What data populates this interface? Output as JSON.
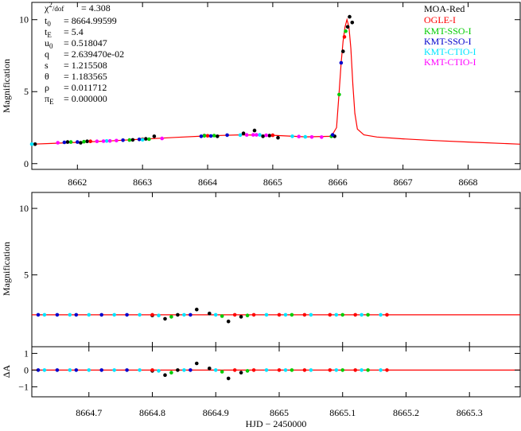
{
  "colors": {
    "model": "#ff0000",
    "MOA-Red": "#000000",
    "OGLE-I": "#ff0000",
    "KMT-SSO-I": "#00cc00",
    "KMT-SSO-I-2": "#0000cc",
    "KMT-CTIO-I": "#00e5ff",
    "KMT-CTIO-I-2": "#ff00ff"
  },
  "chart_data": [
    {
      "type": "line",
      "panel": "top",
      "ylabel": "Magnification",
      "xlim": [
        8661.3,
        8668.8
      ],
      "ylim": [
        -0.4,
        11.2
      ],
      "xticks": [
        8662,
        8663,
        8664,
        8665,
        8666,
        8667,
        8668
      ],
      "xticklabels": [
        "8662",
        "8663",
        "8664",
        "8665",
        "8666",
        "8667",
        "8668"
      ],
      "yticks": [
        0,
        5,
        10
      ],
      "yticklabels": [
        "0",
        "5",
        "10"
      ],
      "params": [
        {
          "name": "χ²/dof",
          "value": "= 4.308"
        },
        {
          "name": "t0",
          "value": "= 8664.99599"
        },
        {
          "name": "tE",
          "value": "= 5.4"
        },
        {
          "name": "u0",
          "value": "= 0.518047"
        },
        {
          "name": "q",
          "value": "= 2.639470e-02"
        },
        {
          "name": "s",
          "value": "= 1.215508"
        },
        {
          "name": "θ",
          "value": "= 1.183565"
        },
        {
          "name": "ρ",
          "value": "= 0.011712"
        },
        {
          "name": "πE",
          "value": "= 0.000000"
        }
      ],
      "legend_position": "top-right",
      "legend": [
        "MOA-Red",
        "OGLE-I",
        "KMT-SSO-I",
        "KMT-SSO-I",
        "KMT-CTIO-I",
        "KMT-CTIO-I"
      ],
      "model": {
        "x": [
          8661.3,
          8661.6,
          8662.0,
          8662.5,
          8663.0,
          8663.5,
          8664.0,
          8664.5,
          8665.0,
          8665.5,
          8665.9,
          8665.98,
          8666.02,
          8666.05,
          8666.08,
          8666.11,
          8666.14,
          8666.17,
          8666.2,
          8666.23,
          8666.26,
          8666.3,
          8666.4,
          8666.6,
          8667.0,
          8667.5,
          8668.0,
          8668.8
        ],
        "y": [
          1.35,
          1.4,
          1.48,
          1.58,
          1.7,
          1.82,
          1.93,
          2.0,
          1.97,
          1.86,
          1.9,
          2.5,
          5.0,
          7.0,
          8.5,
          9.5,
          10.0,
          9.5,
          8.0,
          5.5,
          3.5,
          2.4,
          2.0,
          1.85,
          1.72,
          1.6,
          1.5,
          1.35
        ]
      },
      "series": [
        {
          "name": "MOA-Red",
          "x": [
            8661.35,
            8661.85,
            8662.05,
            8662.15,
            8662.85,
            8663.05,
            8663.18,
            8663.95,
            8664.15,
            8664.55,
            8664.72,
            8664.85,
            8664.95,
            8665.08,
            8665.95,
            8666.08,
            8666.15,
            8666.18,
            8666.22
          ],
          "y": [
            1.35,
            1.5,
            1.45,
            1.55,
            1.65,
            1.72,
            1.9,
            1.95,
            1.9,
            2.1,
            2.3,
            1.9,
            1.95,
            1.8,
            1.9,
            7.8,
            9.5,
            10.2,
            9.8
          ]
        },
        {
          "name": "OGLE-I",
          "x": [
            8662.2,
            8663.0,
            8664.0,
            8665.0,
            8666.1
          ],
          "y": [
            1.55,
            1.7,
            1.93,
            1.97,
            8.8
          ]
        },
        {
          "name": "KMT-SSO-I",
          "x": [
            8661.9,
            8662.1,
            8662.8,
            8663.1,
            8663.95,
            8664.1,
            8665.9,
            8666.02,
            8666.12
          ],
          "y": [
            1.5,
            1.52,
            1.64,
            1.7,
            1.93,
            1.95,
            1.9,
            4.8,
            9.2
          ]
        },
        {
          "name": "KMT-SSO-I",
          "x": [
            8661.8,
            8662.0,
            8662.7,
            8662.95,
            8663.9,
            8664.05,
            8664.3,
            8665.92,
            8666.05
          ],
          "y": [
            1.48,
            1.5,
            1.63,
            1.68,
            1.9,
            1.92,
            1.98,
            2.0,
            7.0
          ]
        },
        {
          "name": "KMT-CTIO-I",
          "x": [
            8661.3,
            8662.45,
            8663.0,
            8664.5,
            8664.8,
            8665.3,
            8665.5
          ],
          "y": [
            1.35,
            1.57,
            1.66,
            1.98,
            2.0,
            1.9,
            1.86
          ]
        },
        {
          "name": "KMT-CTIO-I",
          "x": [
            8661.7,
            8662.3,
            8662.4,
            8662.5,
            8662.6,
            8663.3,
            8664.6,
            8664.7,
            8664.75,
            8664.9,
            8665.4,
            8665.6,
            8665.75
          ],
          "y": [
            1.45,
            1.55,
            1.56,
            1.58,
            1.6,
            1.75,
            1.99,
            2.0,
            2.0,
            1.97,
            1.88,
            1.85,
            1.84
          ]
        }
      ]
    },
    {
      "type": "line",
      "panel": "middle",
      "ylabel": "Magnification",
      "xlim": [
        8664.61,
        8665.38
      ],
      "ylim": [
        -0.4,
        11.2
      ],
      "yticks": [
        5,
        10
      ],
      "yticklabels": [
        "5",
        "10"
      ],
      "model": {
        "x": [
          8664.61,
          8665.38
        ],
        "y": [
          2.0,
          2.0
        ]
      },
      "series": [
        {
          "name": "MOA-Red",
          "x": [
            8664.8,
            8664.82,
            8664.84,
            8664.87,
            8664.89,
            8664.92,
            8664.94
          ],
          "y": [
            1.95,
            1.7,
            2.0,
            2.4,
            2.1,
            1.5,
            1.85
          ]
        },
        {
          "name": "KMT-SSO-I",
          "x": [
            8664.8,
            8664.93,
            8664.96,
            8665.0,
            8665.04,
            8665.08,
            8665.12,
            8665.17
          ],
          "y": [
            2.0,
            2.0,
            2.0,
            2.0,
            2.0,
            2.0,
            2.0,
            2.0
          ]
        },
        {
          "name": "KMT-SSO-I",
          "x": [
            8664.83,
            8664.91,
            8664.95,
            8665.02,
            8665.1,
            8665.14
          ],
          "y": [
            1.85,
            1.9,
            1.95,
            2.0,
            2.0,
            2.0
          ]
        },
        {
          "name": "KMT-CTIO-I",
          "x": [
            8664.62,
            8664.65,
            8664.68,
            8664.72,
            8664.76,
            8664.86
          ],
          "y": [
            2.0,
            2.0,
            2.0,
            2.0,
            2.0,
            2.0
          ]
        },
        {
          "name": "KMT-CTIO-I",
          "x": [
            8664.63,
            8664.67,
            8664.7,
            8664.74,
            8664.78,
            8664.81,
            8664.85,
            8664.9,
            8664.98,
            8665.01,
            8665.05,
            8665.09,
            8665.13,
            8665.16
          ],
          "y": [
            2.0,
            2.0,
            2.0,
            2.0,
            2.0,
            1.95,
            2.0,
            2.0,
            2.0,
            2.0,
            2.0,
            2.0,
            2.0,
            2.0
          ]
        }
      ]
    },
    {
      "type": "scatter",
      "panel": "bottom",
      "ylabel": "ΔA",
      "xlabel": "HJD − 2450000",
      "xlim": [
        8664.61,
        8665.38
      ],
      "ylim": [
        -1.6,
        1.4
      ],
      "xticks": [
        8664.7,
        8664.8,
        8664.9,
        8665.0,
        8665.1,
        8665.2,
        8665.3
      ],
      "xticklabels": [
        "8664.7",
        "8664.8",
        "8664.9",
        "8665",
        "8665.1",
        "8665.2",
        "8665.3"
      ],
      "yticks": [
        -1,
        0,
        1
      ],
      "yticklabels": [
        "−1",
        "0",
        "1"
      ],
      "model": {
        "x": [
          8664.61,
          8665.38
        ],
        "y": [
          0,
          0
        ]
      },
      "series": [
        {
          "name": "MOA-Red",
          "x": [
            8664.8,
            8664.82,
            8664.84,
            8664.87,
            8664.89,
            8664.92,
            8664.94
          ],
          "y": [
            -0.05,
            -0.3,
            0.0,
            0.4,
            0.1,
            -0.5,
            -0.15
          ]
        },
        {
          "name": "KMT-SSO-I",
          "x": [
            8664.8,
            8664.93,
            8664.96,
            8665.0,
            8665.04,
            8665.08,
            8665.12,
            8665.17
          ],
          "y": [
            0,
            0,
            0,
            0,
            0,
            0,
            0,
            0
          ]
        },
        {
          "name": "KMT-SSO-I",
          "x": [
            8664.83,
            8664.91,
            8664.95,
            8665.02,
            8665.1,
            8665.14
          ],
          "y": [
            -0.15,
            -0.1,
            -0.05,
            0,
            0,
            0
          ]
        },
        {
          "name": "KMT-CTIO-I",
          "x": [
            8664.62,
            8664.65,
            8664.68,
            8664.72,
            8664.76,
            8664.86
          ],
          "y": [
            0,
            0,
            0,
            0,
            0,
            0
          ]
        },
        {
          "name": "KMT-CTIO-I",
          "x": [
            8664.63,
            8664.67,
            8664.7,
            8664.74,
            8664.78,
            8664.81,
            8664.85,
            8664.9,
            8664.98,
            8665.01,
            8665.05,
            8665.09,
            8665.13,
            8665.16
          ],
          "y": [
            0,
            0,
            0,
            0,
            0,
            -0.05,
            0,
            0,
            0,
            0,
            0,
            0,
            0,
            0
          ]
        }
      ]
    }
  ]
}
